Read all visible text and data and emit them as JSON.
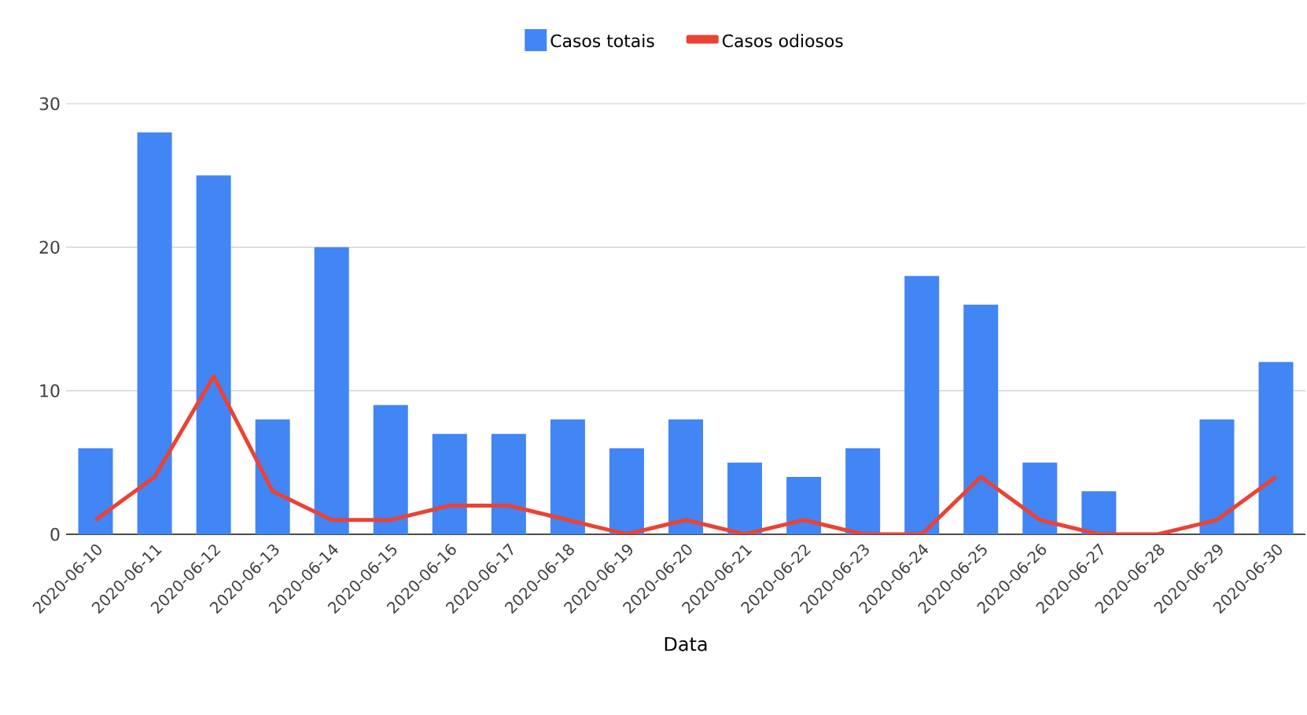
{
  "chart_data": {
    "type": "bar",
    "xlabel": "Data",
    "categories": [
      "2020-06-10",
      "2020-06-11",
      "2020-06-12",
      "2020-06-13",
      "2020-06-14",
      "2020-06-15",
      "2020-06-16",
      "2020-06-17",
      "2020-06-18",
      "2020-06-19",
      "2020-06-20",
      "2020-06-21",
      "2020-06-22",
      "2020-06-23",
      "2020-06-24",
      "2020-06-25",
      "2020-06-26",
      "2020-06-27",
      "2020-06-28",
      "2020-06-29",
      "2020-06-30"
    ],
    "series": [
      {
        "name": "Casos totais",
        "color": "#4285f4",
        "values": [
          6,
          28,
          25,
          8,
          20,
          9,
          7,
          7,
          8,
          6,
          8,
          5,
          4,
          6,
          18,
          16,
          5,
          3,
          0,
          8,
          12
        ]
      },
      {
        "name": "Casos odiosos",
        "type": "line",
        "color": "#ea4335",
        "values": [
          1,
          4,
          11,
          3,
          1,
          1,
          2,
          2,
          1,
          0,
          1,
          0,
          1,
          0,
          0,
          4,
          1,
          0,
          0,
          1,
          4
        ]
      }
    ],
    "ylim": [
      0,
      30
    ],
    "yticks": [
      0,
      10,
      20,
      30
    ],
    "grid": "y",
    "legend": "top"
  }
}
